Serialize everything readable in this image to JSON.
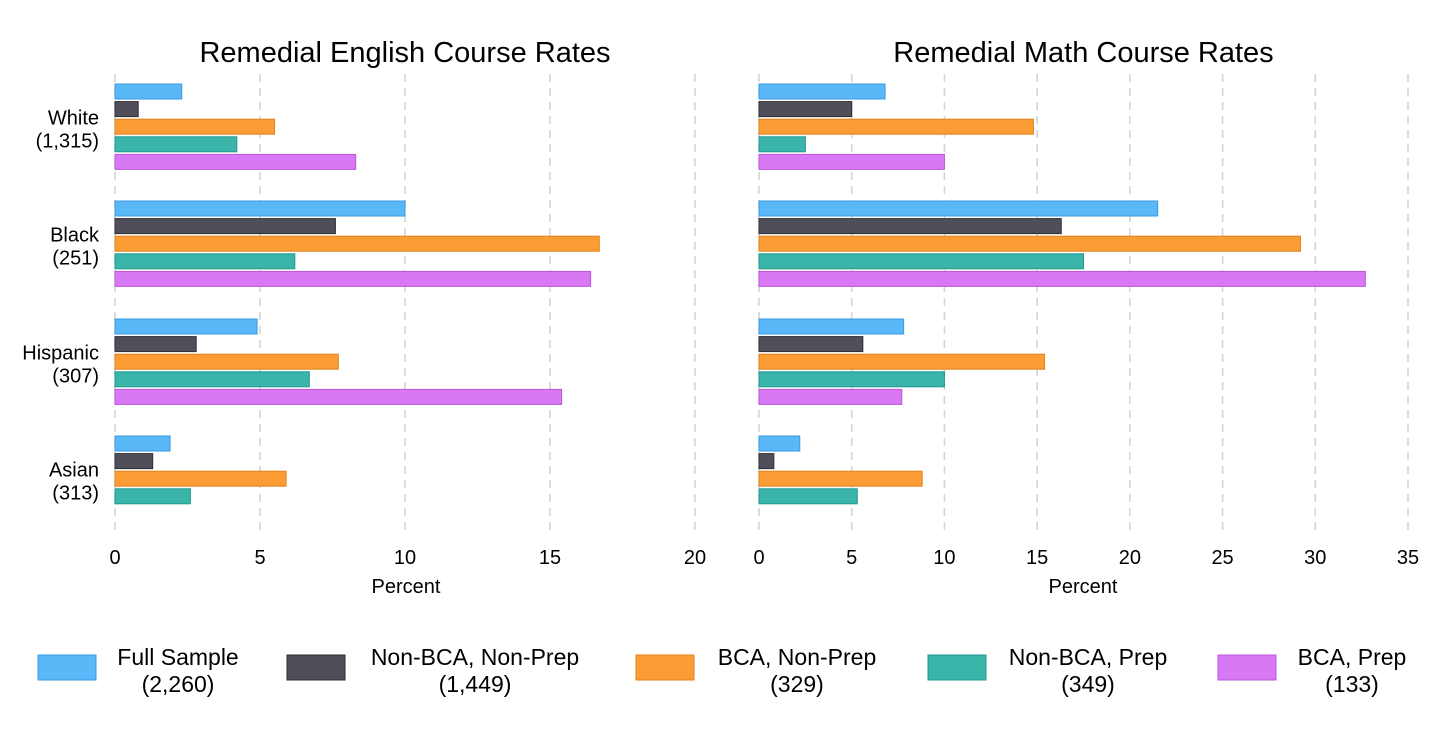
{
  "chart_data": {
    "type": "bar",
    "orientation": "horizontal",
    "grid": "vertical dashed",
    "legend_position": "bottom",
    "categories": [
      {
        "name": "White",
        "n": "(1,315)"
      },
      {
        "name": "Black",
        "n": "(251)"
      },
      {
        "name": "Hispanic",
        "n": "(307)"
      },
      {
        "name": "Asian",
        "n": "(313)"
      }
    ],
    "series_meta": [
      {
        "name": "Full Sample",
        "n": "(2,260)",
        "color": "#5ab7f8",
        "stroke": "#3a9ae0"
      },
      {
        "name": "Non-BCA, Non-Prep",
        "n": "(1,449)",
        "color": "#4f4f5a",
        "stroke": "#2e2e35"
      },
      {
        "name": "BCA, Non-Prep",
        "n": "(329)",
        "color": "#fb9c34",
        "stroke": "#e0821b"
      },
      {
        "name": "Non-BCA, Prep",
        "n": "(349)",
        "color": "#3bb4aa",
        "stroke": "#1e9a90"
      },
      {
        "name": "BCA, Prep",
        "n": "(133)",
        "color": "#d878f4",
        "stroke": "#bb58d8"
      }
    ],
    "panels": [
      {
        "title": "Remedial English Course Rates",
        "xlabel": "Percent",
        "xlim": [
          0,
          20
        ],
        "xticks": [
          0,
          5,
          10,
          15,
          20
        ],
        "series": [
          {
            "name": "Full Sample",
            "values": [
              2.3,
              10.0,
              4.9,
              1.9
            ]
          },
          {
            "name": "Non-BCA, Non-Prep",
            "values": [
              0.8,
              7.6,
              2.8,
              1.3
            ]
          },
          {
            "name": "BCA, Non-Prep",
            "values": [
              5.5,
              16.7,
              7.7,
              5.9
            ]
          },
          {
            "name": "Non-BCA, Prep",
            "values": [
              4.2,
              6.2,
              6.7,
              2.6
            ]
          },
          {
            "name": "BCA, Prep",
            "values": [
              8.3,
              16.4,
              15.4,
              null
            ]
          }
        ]
      },
      {
        "title": "Remedial Math Course Rates",
        "xlabel": "Percent",
        "xlim": [
          0,
          35
        ],
        "xticks": [
          0,
          5,
          10,
          15,
          20,
          25,
          30,
          35
        ],
        "series": [
          {
            "name": "Full Sample",
            "values": [
              6.8,
              21.5,
              7.8,
              2.2
            ]
          },
          {
            "name": "Non-BCA, Non-Prep",
            "values": [
              5.0,
              16.3,
              5.6,
              0.8
            ]
          },
          {
            "name": "BCA, Non-Prep",
            "values": [
              14.8,
              29.2,
              15.4,
              8.8
            ]
          },
          {
            "name": "Non-BCA, Prep",
            "values": [
              2.5,
              17.5,
              10.0,
              5.3
            ]
          },
          {
            "name": "BCA, Prep",
            "values": [
              10.0,
              32.7,
              7.7,
              null
            ]
          }
        ]
      }
    ]
  }
}
